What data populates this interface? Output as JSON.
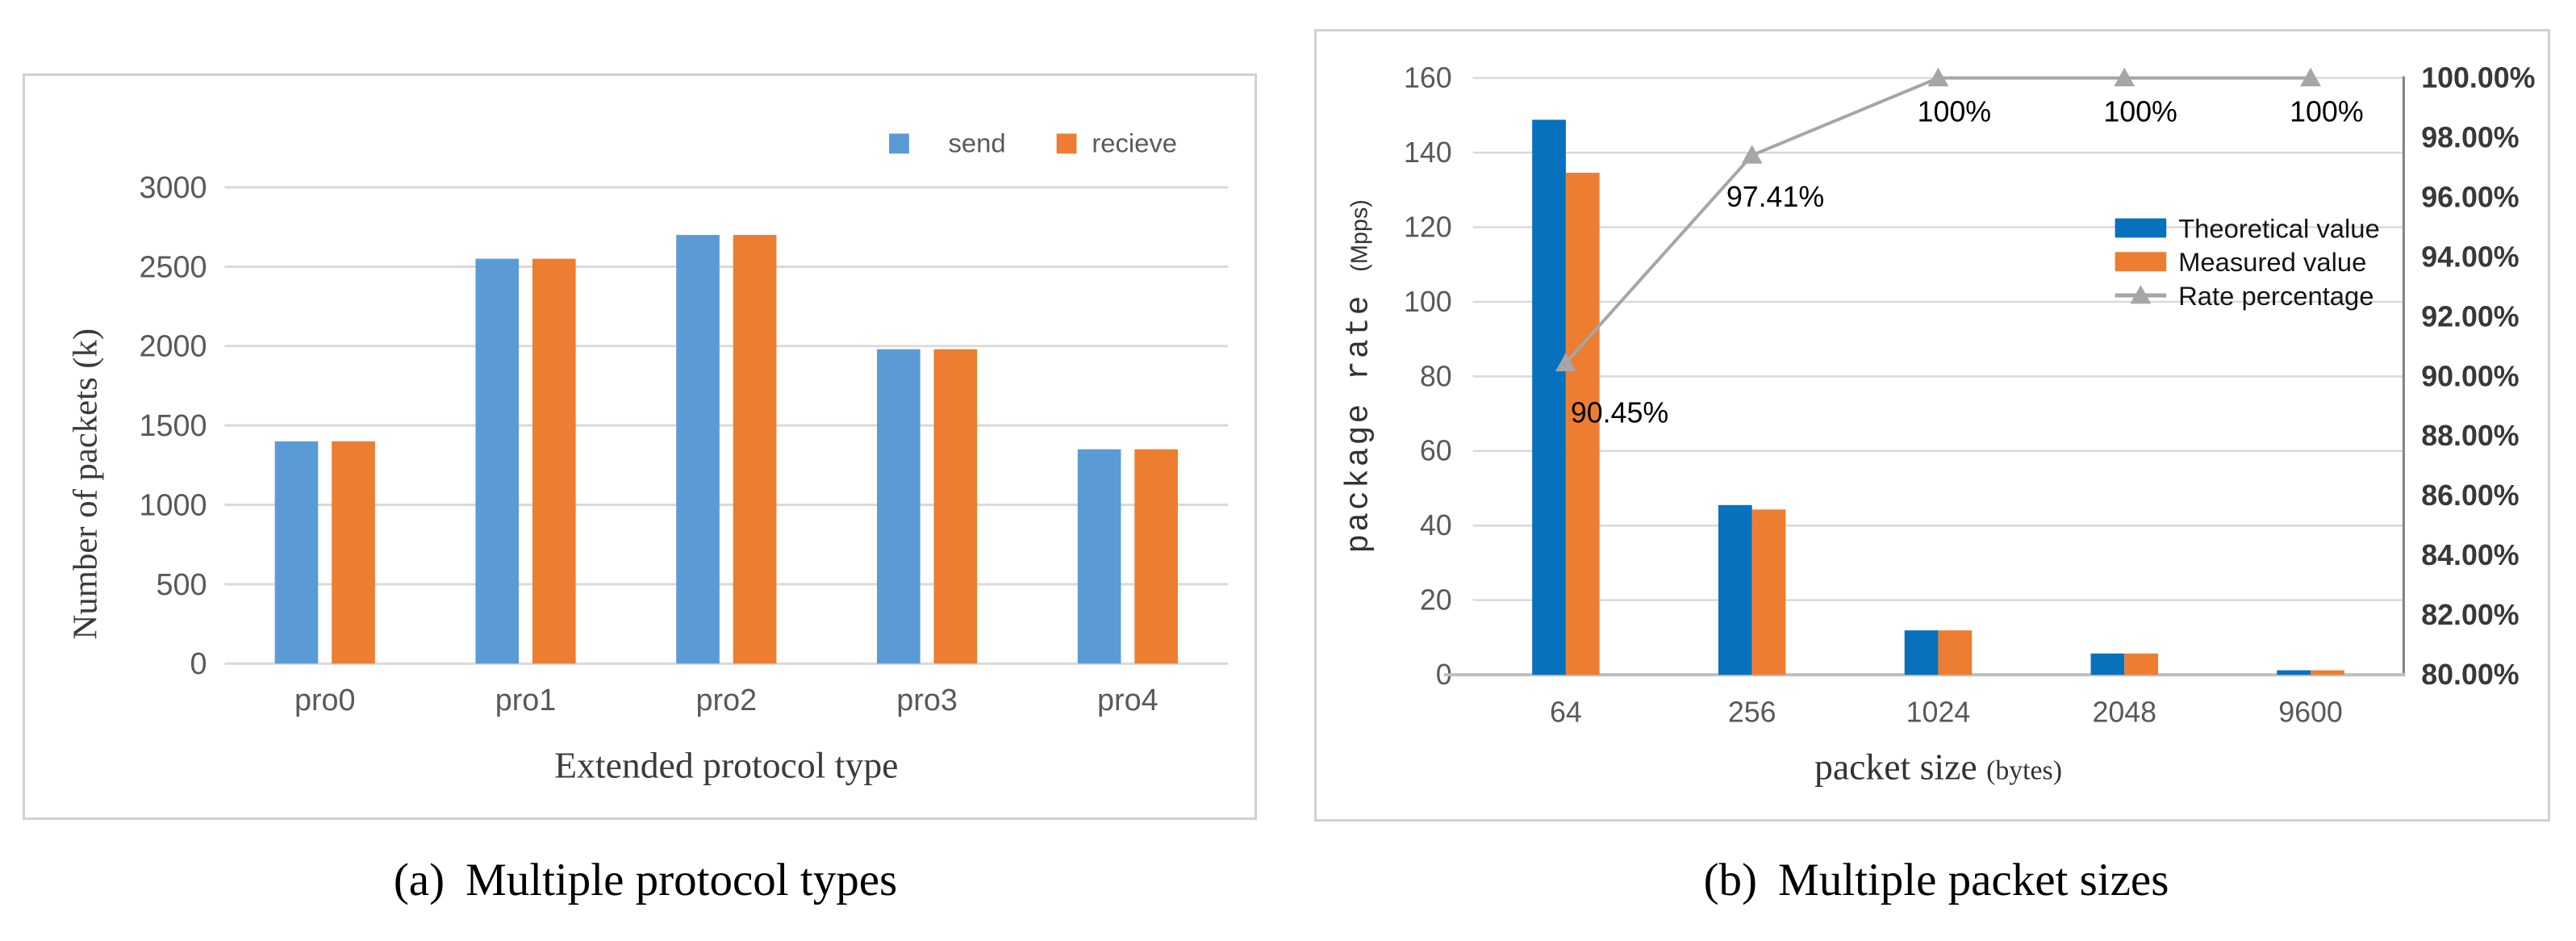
{
  "figure": {
    "captions": [
      {
        "tag": "(a)",
        "text": "Multiple protocol types"
      },
      {
        "tag": "(b)",
        "text": "Multiple packet sizes"
      }
    ]
  },
  "chart_data": [
    {
      "id": "protocol-types",
      "type": "bar",
      "categories": [
        "pro0",
        "pro1",
        "pro2",
        "pro3",
        "pro4"
      ],
      "series": [
        {
          "name": "send",
          "color": "#5B9BD5",
          "values": [
            1400,
            2550,
            2700,
            1980,
            1350
          ]
        },
        {
          "name": "recieve",
          "color": "#ED7D31",
          "values": [
            1400,
            2550,
            2700,
            1980,
            1350
          ]
        }
      ],
      "xlabel": "Extended protocol type",
      "ylabel": "Number of packets (k)",
      "ylim": [
        0,
        3000
      ],
      "yticks": [
        "0",
        "500",
        "1000",
        "1500",
        "2000",
        "2500",
        "3000"
      ],
      "grid": true,
      "legend_position": "top-right",
      "gridline_color": "#d9d9d9"
    },
    {
      "id": "packet-sizes",
      "type": "bar+line",
      "categories": [
        "64",
        "256",
        "1024",
        "2048",
        "9600"
      ],
      "series": [
        {
          "name": "Theoretical value",
          "color": "#0771BE",
          "values": [
            148.8,
            45.5,
            11.9,
            5.7,
            1.2
          ]
        },
        {
          "name": "Measured value",
          "color": "#ED7D31",
          "values": [
            134.6,
            44.3,
            11.9,
            5.7,
            1.2
          ]
        }
      ],
      "line_series": {
        "name": "Rate percentage",
        "color": "#A6A6A6",
        "axis": "right",
        "values": [
          90.45,
          97.41,
          100,
          100,
          100
        ],
        "labels": [
          "90.45%",
          "97.41%",
          "100%",
          "100%",
          "100%"
        ]
      },
      "xlabel": "packet size",
      "xlabel_unit": "(bytes)",
      "ylabel": "package rate",
      "ylabel_unit": "(Mpps)",
      "ylim": [
        0,
        160
      ],
      "yticks": [
        "0",
        "20",
        "40",
        "60",
        "80",
        "100",
        "120",
        "140",
        "160"
      ],
      "y2lim": [
        80,
        100
      ],
      "y2ticks": [
        "100.00%",
        "98.00%",
        "96.00%",
        "94.00%",
        "92.00%",
        "90.00%",
        "88.00%",
        "86.00%",
        "84.00%",
        "82.00%",
        "80.00%"
      ],
      "grid": true,
      "legend_position": "middle-right",
      "gridline_color": "#d9d9d9",
      "right_spine_color": "#808080",
      "bottom_axis_color": "#bfbfbf"
    }
  ]
}
